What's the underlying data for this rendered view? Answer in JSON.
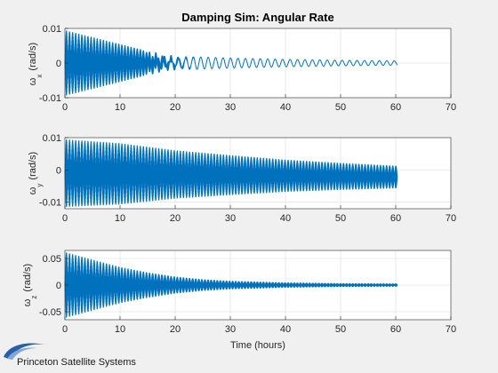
{
  "chart_data": [
    {
      "type": "line",
      "title": "Damping Sim: Angular Rate",
      "ylabel_symbol": "ω",
      "ylabel_sub": "x",
      "ylabel_unit": "(rad/s)",
      "xlabel": "",
      "xlim": [
        0,
        70
      ],
      "ylim": [
        -0.01,
        0.01
      ],
      "xticks": [
        "0",
        "10",
        "20",
        "30",
        "40",
        "50",
        "60",
        "70"
      ],
      "yticks": [
        "-0.01",
        "0",
        "0.01"
      ],
      "ytick_values": [
        -0.01,
        0,
        0.01
      ],
      "grid": true,
      "series": [
        {
          "color": "#0072bd",
          "t_end": 60.3,
          "envelope": {
            "t": [
              0,
              5,
              10,
              15,
              20,
              25,
              30,
              40,
              50,
              60.3
            ],
            "amp": [
              0.0095,
              0.0075,
              0.0055,
              0.0035,
              0.0024,
              0.0019,
              0.0016,
              0.0012,
              0.0009,
              0.0007
            ]
          },
          "beat_amp": [
            0.0,
            0.0018,
            0.0013,
            0.0008
          ]
        }
      ]
    },
    {
      "type": "line",
      "title": "",
      "ylabel_symbol": "ω",
      "ylabel_sub": "y",
      "ylabel_unit": "(rad/s)",
      "xlabel": "",
      "xlim": [
        0,
        70
      ],
      "ylim": [
        -0.012,
        0.01
      ],
      "xticks": [
        "0",
        "10",
        "20",
        "30",
        "40",
        "50",
        "60",
        "70"
      ],
      "yticks": [
        "-0.01",
        "0",
        "0.01"
      ],
      "ytick_values": [
        -0.01,
        0,
        0.01
      ],
      "grid": true,
      "series": [
        {
          "color": "#0072bd",
          "t_end": 60.3,
          "envelope": {
            "t": [
              0,
              10,
              20,
              30,
              40,
              50,
              60.3
            ],
            "amp": [
              0.0105,
              0.0095,
              0.0075,
              0.0062,
              0.005,
              0.0042,
              0.0035
            ],
            "offset": [
              -0.001,
              -0.0012,
              -0.0014,
              -0.0016,
              -0.0018,
              -0.002,
              -0.0022
            ]
          }
        }
      ]
    },
    {
      "type": "line",
      "title": "",
      "ylabel_symbol": "ω",
      "ylabel_sub": "z",
      "ylabel_unit": "(rad/s)",
      "xlabel": "Time (hours)",
      "xlim": [
        0,
        70
      ],
      "ylim": [
        -0.065,
        0.065
      ],
      "xticks": [
        "0",
        "10",
        "20",
        "30",
        "40",
        "50",
        "60",
        "70"
      ],
      "yticks": [
        "-0.05",
        "0",
        "0.05"
      ],
      "ytick_values": [
        -0.05,
        0,
        0.05
      ],
      "grid": true,
      "series": [
        {
          "color": "#0072bd",
          "t_end": 60.3,
          "envelope": {
            "t": [
              0,
              5,
              10,
              15,
              20,
              25,
              30,
              40,
              50,
              60.3
            ],
            "amp": [
              0.062,
              0.048,
              0.034,
              0.024,
              0.016,
              0.011,
              0.008,
              0.005,
              0.0035,
              0.003
            ]
          }
        }
      ]
    }
  ],
  "footer": {
    "company": "Princeton Satellite Systems"
  },
  "colors": {
    "background": "#f0f0f0",
    "axes_bg": "#ffffff",
    "line": "#0072bd",
    "logo": "#2a5fa8"
  }
}
